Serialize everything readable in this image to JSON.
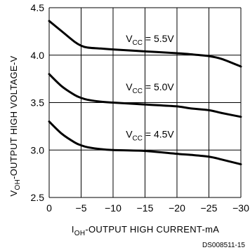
{
  "chart_data": {
    "type": "line",
    "xlabel": {
      "main": "I",
      "sub": "OH",
      "rest": "-OUTPUT HIGH CURRENT-mA"
    },
    "ylabel": {
      "main": "V",
      "sub": "OH",
      "rest": "-OUTPUT HIGH VOLTAGE-V"
    },
    "xlim": [
      0,
      -30
    ],
    "ylim": [
      2.5,
      4.5
    ],
    "x_ticks": [
      0,
      -5,
      -10,
      -15,
      -20,
      -25,
      -30
    ],
    "x_tick_labels": [
      "0",
      "−5",
      "−10",
      "−15",
      "−20",
      "−25",
      "−30"
    ],
    "y_ticks": [
      2.5,
      3.0,
      3.5,
      4.0,
      4.5
    ],
    "y_tick_labels": [
      "2.5",
      "3.0",
      "3.5",
      "4.0",
      "4.5"
    ],
    "grid": true,
    "series": [
      {
        "name": "V_CC = 5.5V",
        "label_main": "V",
        "label_sub": "CC",
        "label_rest": " = 5.5V",
        "label_at": [
          -12,
          4.14
        ],
        "x": [
          0,
          -2,
          -4,
          -5,
          -6,
          -8,
          -10,
          -15,
          -20,
          -22,
          -25,
          -27,
          -30
        ],
        "y": [
          4.36,
          4.25,
          4.14,
          4.1,
          4.08,
          4.07,
          4.06,
          4.04,
          4.02,
          4.01,
          3.99,
          3.96,
          3.88
        ]
      },
      {
        "name": "V_CC = 5.0V",
        "label_main": "V",
        "label_sub": "CC",
        "label_rest": " = 5.0V",
        "label_at": [
          -12,
          3.63
        ],
        "x": [
          0,
          -2,
          -4,
          -5,
          -6,
          -8,
          -10,
          -15,
          -20,
          -22,
          -25,
          -27,
          -30
        ],
        "y": [
          3.8,
          3.67,
          3.58,
          3.55,
          3.53,
          3.51,
          3.5,
          3.48,
          3.46,
          3.44,
          3.42,
          3.39,
          3.35
        ]
      },
      {
        "name": "V_CC = 4.5V",
        "label_main": "V",
        "label_sub": "CC",
        "label_rest": " = 4.5V",
        "label_at": [
          -12,
          3.13
        ],
        "x": [
          0,
          -2,
          -4,
          -5,
          -6,
          -8,
          -10,
          -15,
          -20,
          -22,
          -25,
          -27,
          -30
        ],
        "y": [
          3.3,
          3.17,
          3.08,
          3.05,
          3.03,
          3.01,
          3.0,
          2.99,
          2.96,
          2.95,
          2.93,
          2.9,
          2.85
        ]
      }
    ]
  },
  "figure_code": "DS008511-15"
}
